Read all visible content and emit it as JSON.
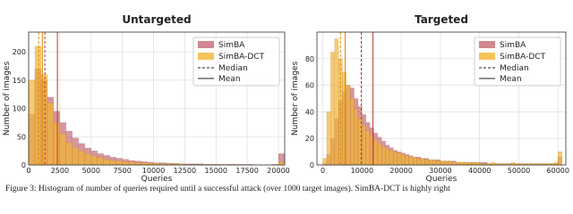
{
  "chart_data": [
    {
      "type": "histogram",
      "title": "Untargeted",
      "x_label": "Queries",
      "y_label": "Number of images",
      "bins": [
        0,
        500,
        1000,
        1500,
        2000,
        2500,
        3000,
        3500,
        4000,
        4500,
        5000,
        5500,
        6000,
        6500,
        7000,
        7500,
        8000,
        8500,
        9000,
        9500,
        10000,
        10500,
        11000,
        11500,
        12000,
        12500,
        13000,
        13500,
        14000,
        14500,
        15000,
        15500,
        16000,
        16500,
        17000,
        17500,
        18000,
        18500,
        19000,
        19500,
        20000,
        20500
      ],
      "series": [
        {
          "name": "SimBA",
          "color": "#c56a73",
          "values": [
            90,
            170,
            150,
            120,
            95,
            75,
            60,
            48,
            38,
            30,
            25,
            20,
            17,
            14,
            12,
            10,
            8,
            7,
            6,
            5,
            4,
            4,
            3,
            3,
            2,
            2,
            2,
            2,
            1,
            1,
            1,
            1,
            1,
            1,
            0,
            1,
            0,
            0,
            0,
            1,
            20
          ],
          "median": 1300,
          "mean": 2300
        },
        {
          "name": "SimBA-DCT",
          "color": "#f2b530",
          "values": [
            150,
            210,
            160,
            110,
            75,
            55,
            40,
            30,
            25,
            20,
            16,
            13,
            10,
            8,
            7,
            6,
            5,
            4,
            4,
            3,
            3,
            2,
            2,
            2,
            2,
            1,
            1,
            1,
            1,
            1,
            1,
            0,
            1,
            0,
            1,
            0,
            0,
            0,
            0,
            0,
            5
          ],
          "median": 800,
          "mean": 1100
        }
      ],
      "reference_lines": [
        {
          "name": "Median",
          "style": "dashed"
        },
        {
          "name": "Mean",
          "style": "solid"
        }
      ],
      "xlim": [
        0,
        20500
      ],
      "xticks": [
        0,
        2500,
        5000,
        7500,
        10000,
        12500,
        15000,
        17500,
        20000
      ],
      "ylim": [
        0,
        235
      ],
      "yticks": [
        0,
        50,
        100,
        150,
        200
      ],
      "grid": true,
      "legend": "upper right"
    },
    {
      "type": "histogram",
      "title": "Targeted",
      "x_label": "Queries",
      "y_label": "Number of images",
      "bins": [
        0,
        1000,
        2000,
        3000,
        4000,
        5000,
        6000,
        7000,
        8000,
        9000,
        10000,
        11000,
        12000,
        13000,
        14000,
        15000,
        16000,
        17000,
        18000,
        19000,
        20000,
        21000,
        22000,
        23000,
        24000,
        25000,
        26000,
        27000,
        28000,
        29000,
        30000,
        31000,
        32000,
        33000,
        34000,
        35000,
        36000,
        37000,
        38000,
        39000,
        40000,
        41000,
        42000,
        43000,
        44000,
        45000,
        46000,
        47000,
        48000,
        49000,
        50000,
        51000,
        52000,
        53000,
        54000,
        55000,
        56000,
        57000,
        58000,
        59000,
        60000,
        61000
      ],
      "series": [
        {
          "name": "SimBA",
          "color": "#c56a73",
          "values": [
            1,
            8,
            20,
            35,
            48,
            55,
            60,
            58,
            50,
            44,
            38,
            32,
            28,
            24,
            21,
            18,
            15,
            13,
            11,
            10,
            9,
            8,
            7,
            6,
            6,
            5,
            5,
            4,
            4,
            4,
            3,
            3,
            3,
            3,
            2,
            2,
            2,
            2,
            2,
            2,
            2,
            2,
            1,
            1,
            1,
            1,
            1,
            1,
            1,
            1,
            1,
            1,
            1,
            1,
            1,
            1,
            1,
            1,
            1,
            1,
            6
          ],
          "median": 9800,
          "mean": 12800
        },
        {
          "name": "SimBA-DCT",
          "color": "#f2b530",
          "values": [
            5,
            40,
            85,
            95,
            80,
            70,
            60,
            50,
            42,
            35,
            30,
            26,
            22,
            19,
            16,
            14,
            12,
            11,
            10,
            9,
            8,
            7,
            6,
            6,
            5,
            5,
            4,
            4,
            4,
            3,
            3,
            3,
            3,
            2,
            2,
            2,
            2,
            2,
            2,
            2,
            1,
            1,
            1,
            2,
            1,
            1,
            1,
            1,
            2,
            1,
            1,
            1,
            1,
            1,
            1,
            1,
            1,
            1,
            1,
            2,
            10
          ],
          "median": 4500,
          "mean": 5700
        }
      ],
      "reference_lines": [
        {
          "name": "Median",
          "style": "dashed"
        },
        {
          "name": "Mean",
          "style": "solid"
        }
      ],
      "xlim": [
        -1500,
        62000
      ],
      "xticks": [
        0,
        10000,
        20000,
        30000,
        40000,
        50000,
        60000
      ],
      "ylim": [
        0,
        100
      ],
      "yticks": [
        0,
        20,
        40,
        60,
        80
      ],
      "grid": true,
      "legend": "upper right"
    }
  ],
  "caption": "Figure 3: Histogram of number of queries required until a successful attack (over 1000 target images). SimBA-DCT is highly right"
}
